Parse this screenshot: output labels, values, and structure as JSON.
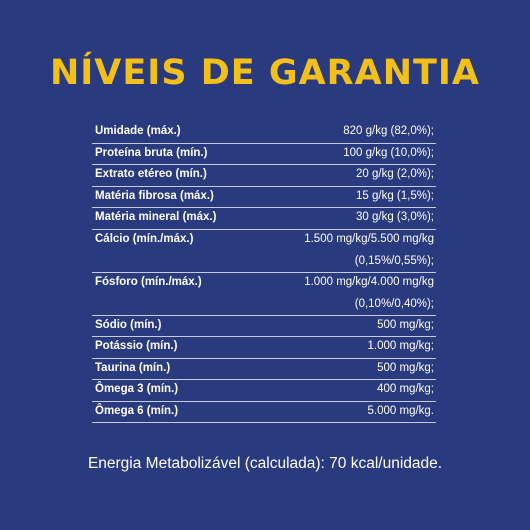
{
  "title": "NÍVEIS DE GARANTIA",
  "rows": [
    {
      "label": "Umidade (máx.)",
      "value": "820 g/kg (82,0%);"
    },
    {
      "label": "Proteína bruta (mín.)",
      "value": "100 g/kg (10,0%);"
    },
    {
      "label": "Extrato etéreo (mín.)",
      "value": "20 g/kg (2,0%);"
    },
    {
      "label": "Matéria fibrosa (máx.)",
      "value": "15 g/kg (1,5%);"
    },
    {
      "label": "Matéria mineral (máx.)",
      "value": "30 g/kg (3,0%);"
    },
    {
      "label": "Cálcio (mín./máx.)",
      "value": "1.500 mg/kg/5.500 mg/kg",
      "value2": "(0,15%/0,55%);"
    },
    {
      "label": "Fósforo (mín./máx.)",
      "value": "1.000 mg/kg/4.000 mg/kg",
      "value2": "(0,10%/0,40%);"
    },
    {
      "label": "Sódio (mín.)",
      "value": "500 mg/kg;"
    },
    {
      "label": "Potássio (mín.)",
      "value": "1.000 mg/kg;"
    },
    {
      "label": "Taurina (mín.)",
      "value": "500 mg/kg;"
    },
    {
      "label": "Ômega 3 (mín.)",
      "value": "400 mg/kg;"
    },
    {
      "label": "Ômega 6 (mín.)",
      "value": "5.000 mg/kg."
    }
  ],
  "footer": "Energia Metabolizável (calculada): 70 kcal/unidade.",
  "colors": {
    "background": "#2a3a7e",
    "title": "#f2c018",
    "text": "#ffffff"
  }
}
